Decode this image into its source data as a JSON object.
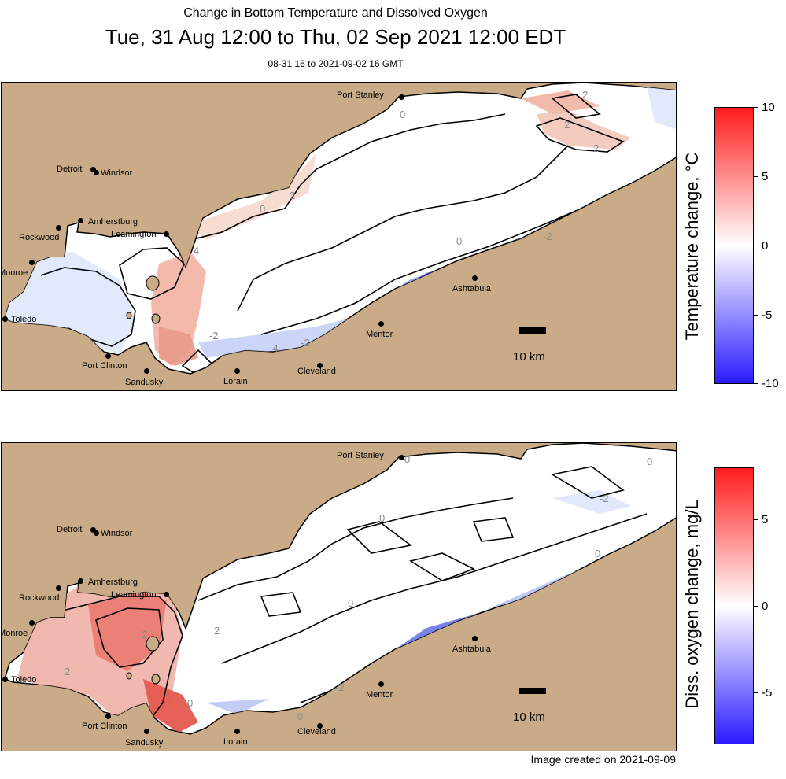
{
  "header": {
    "subtitle": "Change in Bottom Temperature and Dissolved Oxygen",
    "title": "Tue, 31 Aug 12:00 to Thu, 02 Sep 2021 12:00 EDT",
    "time_range": "08-31 16 to 2021-09-02 16 GMT"
  },
  "cities": [
    "Port Stanley",
    "Detroit",
    "Windsor",
    "Amherstburg",
    "Leamington",
    "Rockwood",
    "Monroe",
    "Toledo",
    "Port Clinton",
    "Sandusky",
    "Lorain",
    "Cleveland",
    "Mentor",
    "Ashtabula"
  ],
  "panels": [
    {
      "scale_label": "10 km",
      "contour_labels": [
        "0",
        "2",
        "-2",
        "4",
        "-4",
        "0",
        "2",
        "-2",
        "2",
        "0",
        "-2",
        "2"
      ],
      "colorbar": {
        "title": "Temperature change, °C",
        "ticks": [
          "10",
          "5",
          "0",
          "-5",
          "-10"
        ],
        "min": -10,
        "max": 10,
        "low_color": "#2b1bff",
        "mid_color": "#ffffff",
        "high_color": "#ff1b1b"
      }
    },
    {
      "scale_label": "10 km",
      "contour_labels": [
        "0",
        "0",
        "0",
        "-2",
        "2",
        "0",
        "0",
        "-2",
        "0",
        "2",
        "0",
        "2"
      ],
      "colorbar": {
        "title": "Diss. oxygen change, mg/L",
        "ticks": [
          "5",
          "0",
          "-5"
        ],
        "min": -8,
        "max": 8,
        "low_color": "#2b1bff",
        "mid_color": "#ffffff",
        "high_color": "#ff1b1b"
      }
    }
  ],
  "footer": {
    "credit": "Image created on 2021-09-09"
  },
  "colors": {
    "land": "#c9ac87",
    "water": "#ffffff"
  }
}
